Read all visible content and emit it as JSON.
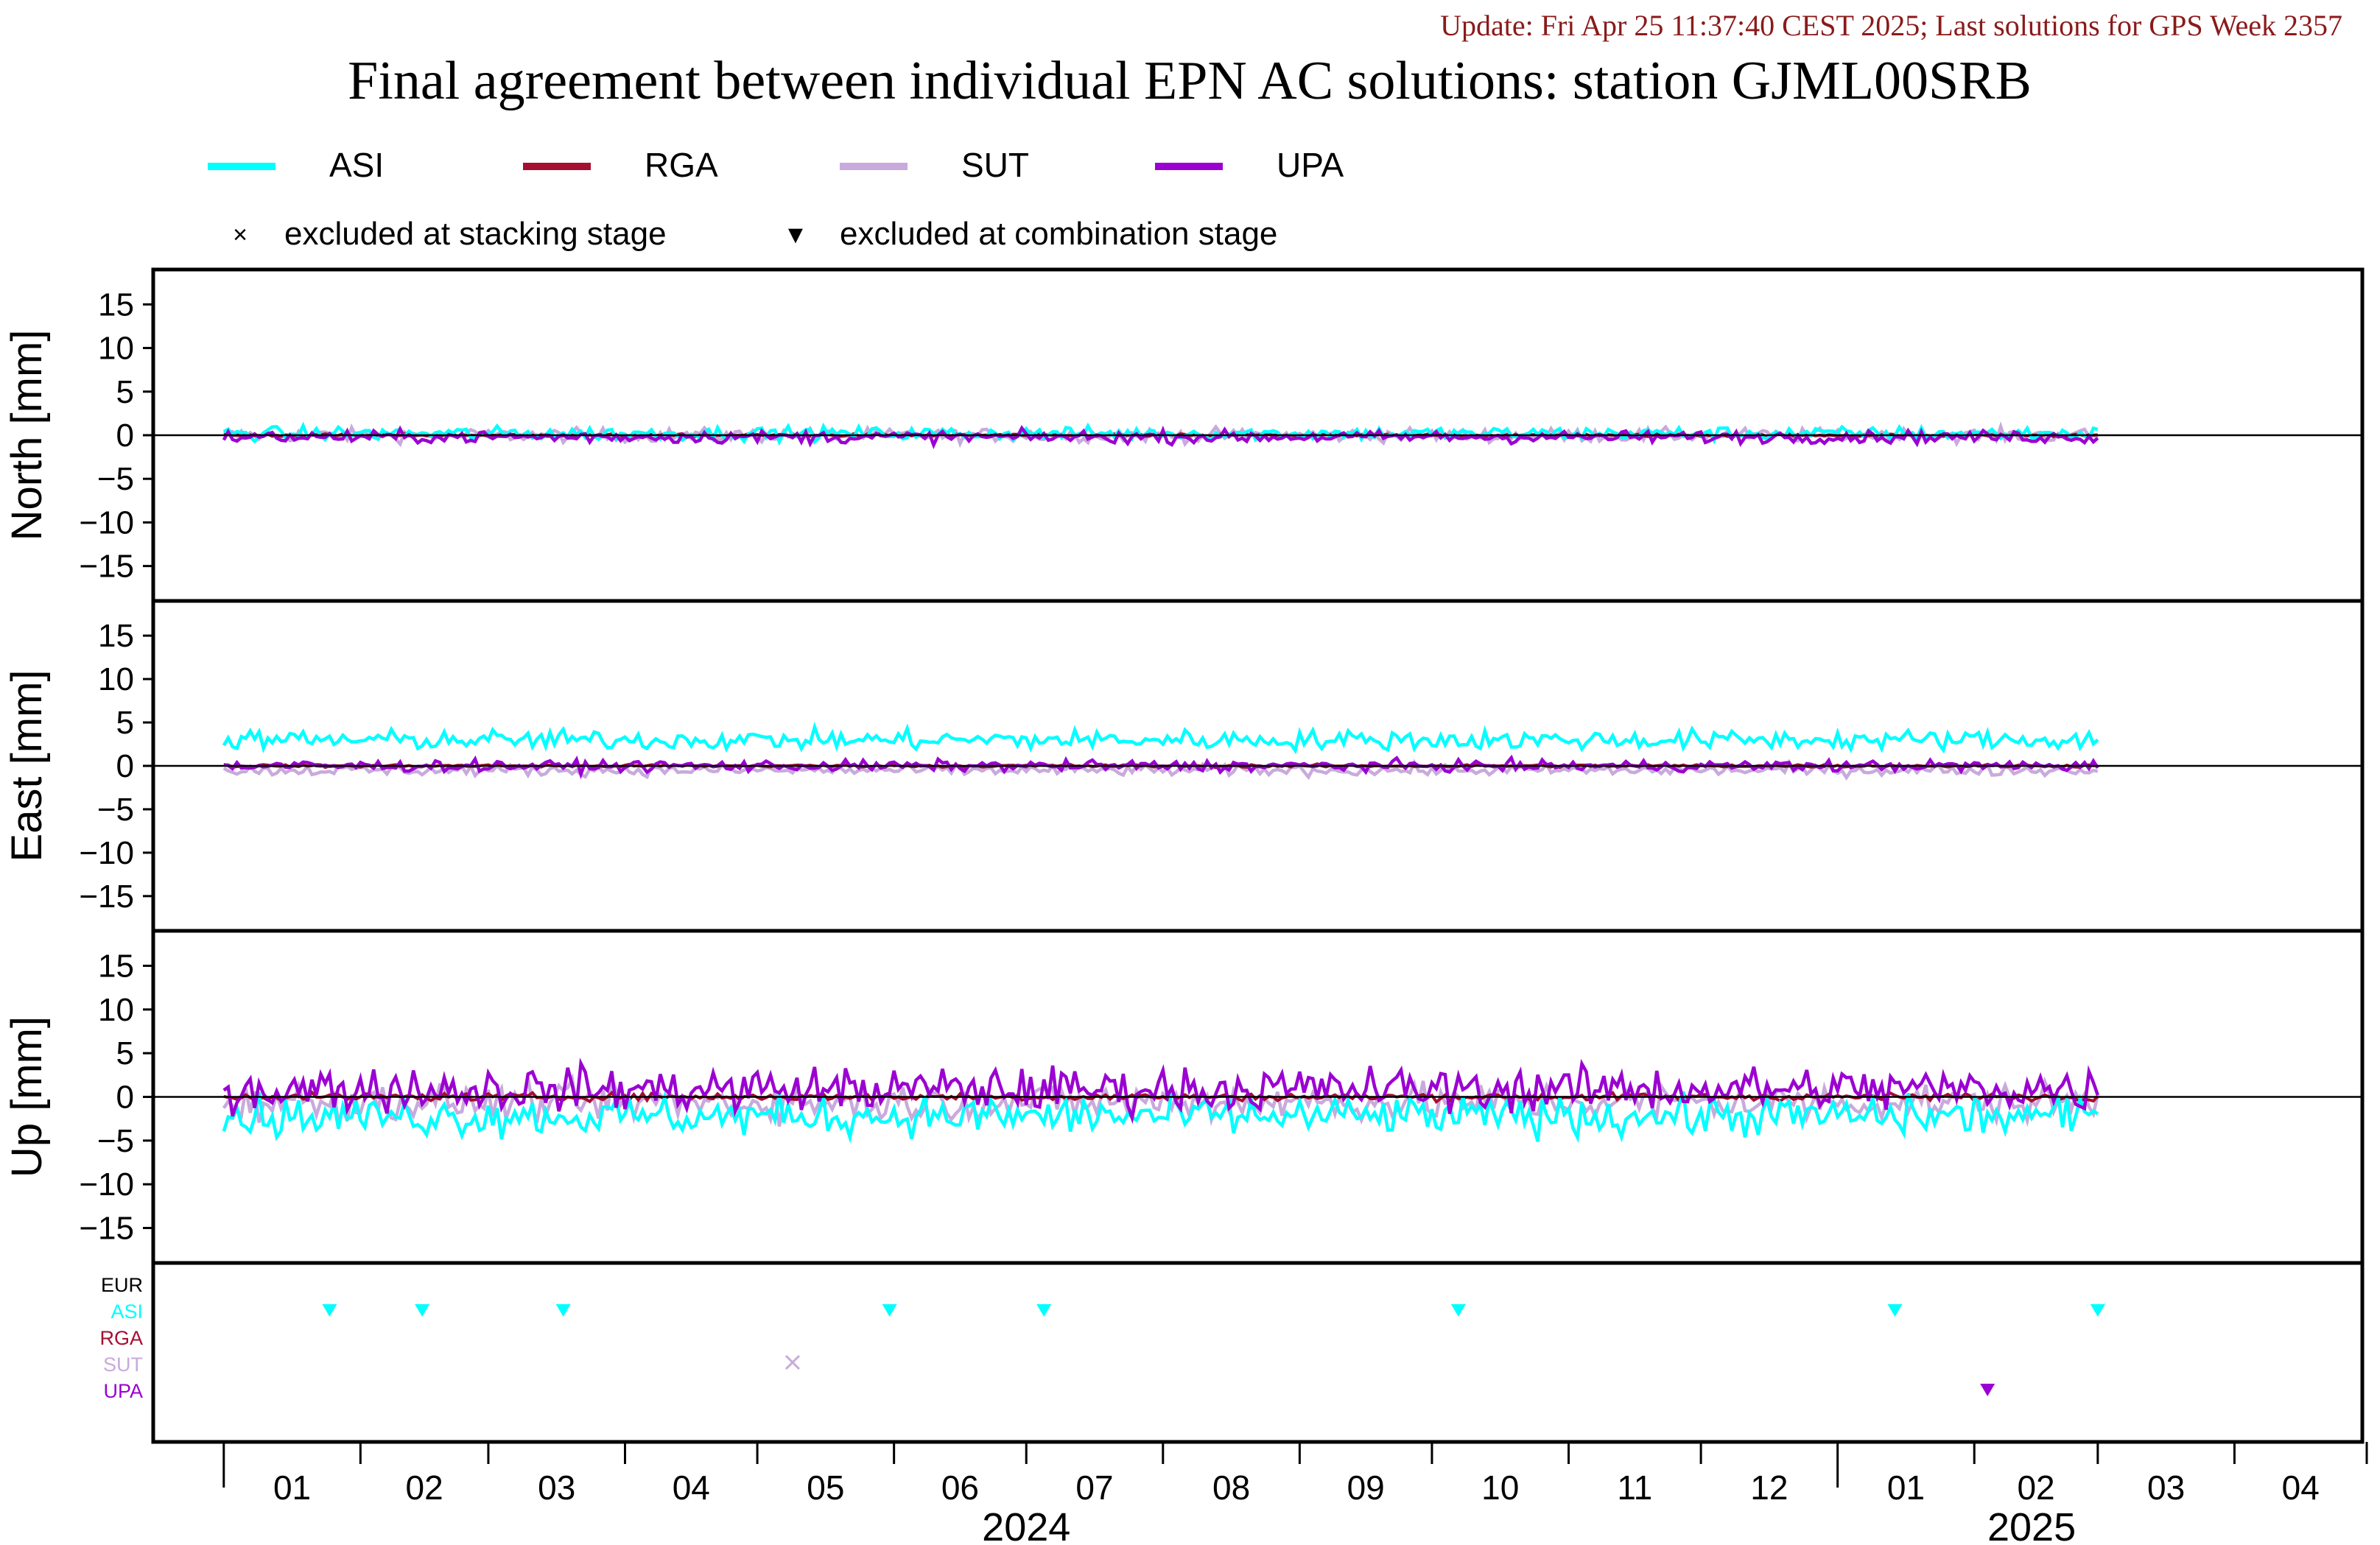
{
  "update_text": "Update: Fri Apr 25 11:37:40 CEST 2025; Last solutions for GPS Week 2357",
  "title": "Final agreement between individual EPN AC solutions: station GJML00SRB",
  "legend": {
    "series": [
      {
        "name": "ASI",
        "color": "#00ffff"
      },
      {
        "name": "RGA",
        "color": "#a50f32"
      },
      {
        "name": "SUT",
        "color": "#c8aadc"
      },
      {
        "name": "UPA",
        "color": "#9b00d2"
      }
    ],
    "markers": [
      {
        "symbol": "×",
        "label": "excluded at stacking stage"
      },
      {
        "symbol": "▼",
        "label": "excluded at combination stage"
      }
    ]
  },
  "colors": {
    "EUR": "#000000",
    "ASI": "#00ffff",
    "RGA": "#a50f32",
    "SUT": "#c8aadc",
    "UPA": "#9b00d2"
  },
  "chart_data": {
    "type": "line",
    "x_axis": {
      "type": "date",
      "range": [
        "2023-12-16",
        "2025-04-30"
      ],
      "month_ticks": [
        "01",
        "02",
        "03",
        "04",
        "05",
        "06",
        "07",
        "08",
        "09",
        "10",
        "11",
        "12",
        "01",
        "02",
        "03",
        "04"
      ],
      "year_labels": [
        "2024",
        "2025"
      ]
    },
    "ylim": [
      -19,
      19
    ],
    "yticks": [
      15,
      10,
      5,
      0,
      -5,
      -10,
      -15
    ],
    "panels": [
      {
        "name": "North",
        "ylabel": "North [mm]",
        "offsets": {
          "ASI": 0.2,
          "RGA": 0.0,
          "SUT": 0.0,
          "UPA": -0.2
        },
        "noise": {
          "ASI": 0.55,
          "RGA": 0.12,
          "SUT": 0.55,
          "UPA": 0.5
        }
      },
      {
        "name": "East",
        "ylabel": "East [mm]",
        "offsets": {
          "ASI": 3.0,
          "RGA": 0.0,
          "SUT": -0.5,
          "UPA": 0.0
        },
        "noise": {
          "ASI": 0.8,
          "RGA": 0.12,
          "SUT": 0.45,
          "UPA": 0.45
        }
      },
      {
        "name": "Up",
        "ylabel": "Up [mm]",
        "offsets": {
          "ASI": -2.2,
          "RGA": 0.0,
          "SUT": -0.6,
          "UPA": 0.9
        },
        "noise": {
          "ASI": 1.6,
          "RGA": 0.3,
          "SUT": 1.5,
          "UPA": 1.8
        }
      }
    ],
    "data_range": [
      "2024-01-01",
      "2025-03-01"
    ],
    "exclusions": {
      "row_labels": [
        "EUR",
        "ASI",
        "RGA",
        "SUT",
        "UPA"
      ],
      "combination_stage": [
        {
          "ac": "ASI",
          "date": "2024-01-25"
        },
        {
          "ac": "ASI",
          "date": "2024-02-15"
        },
        {
          "ac": "ASI",
          "date": "2024-03-18"
        },
        {
          "ac": "ASI",
          "date": "2024-05-31"
        },
        {
          "ac": "ASI",
          "date": "2024-07-05"
        },
        {
          "ac": "ASI",
          "date": "2024-10-07"
        },
        {
          "ac": "ASI",
          "date": "2025-01-14"
        },
        {
          "ac": "ASI",
          "date": "2025-03-01"
        },
        {
          "ac": "UPA",
          "date": "2025-02-04"
        }
      ],
      "stacking_stage": [
        {
          "ac": "SUT",
          "date": "2024-05-09"
        }
      ]
    }
  }
}
